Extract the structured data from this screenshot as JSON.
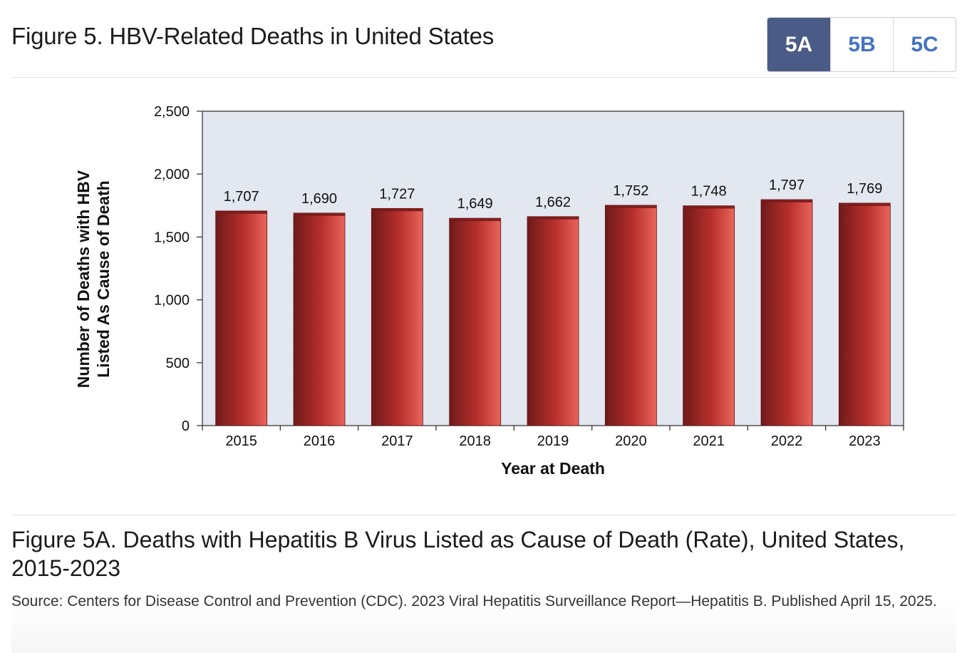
{
  "header": {
    "title": "Figure 5. HBV-Related Deaths in United States",
    "tabs": [
      {
        "label": "5A",
        "active": true
      },
      {
        "label": "5B",
        "active": false
      },
      {
        "label": "5C",
        "active": false
      }
    ]
  },
  "chart_data": {
    "type": "bar",
    "categories": [
      "2015",
      "2016",
      "2017",
      "2018",
      "2019",
      "2020",
      "2021",
      "2022",
      "2023"
    ],
    "values": [
      1707,
      1690,
      1727,
      1649,
      1662,
      1752,
      1748,
      1797,
      1769
    ],
    "value_labels": [
      "1,707",
      "1,690",
      "1,727",
      "1,649",
      "1,662",
      "1,752",
      "1,748",
      "1,797",
      "1,769"
    ],
    "xlabel": "Year at Death",
    "ylabel_line1": "Number of Deaths  with HBV",
    "ylabel_line2": "Listed As Cause of Death",
    "ylim": [
      0,
      2500
    ],
    "yticks": [
      0,
      500,
      1000,
      1500,
      2000,
      2500
    ],
    "ytick_labels": [
      "0",
      "500",
      "1,000",
      "1,500",
      "2,000",
      "2,500"
    ],
    "colors": {
      "bar_dark": "#6e1a1a",
      "bar_mid": "#b8302c",
      "bar_light": "#e9655c",
      "plot_bg": "#e3e7f0"
    }
  },
  "caption": {
    "title": "Figure 5A. Deaths with Hepatitis B Virus Listed as Cause of Death (Rate), United States, 2015-2023",
    "source": "Source: Centers for Disease Control and Prevention (CDC). 2023 Viral Hepatitis Surveillance Report—Hepatitis B. Published April 15, 2025."
  }
}
